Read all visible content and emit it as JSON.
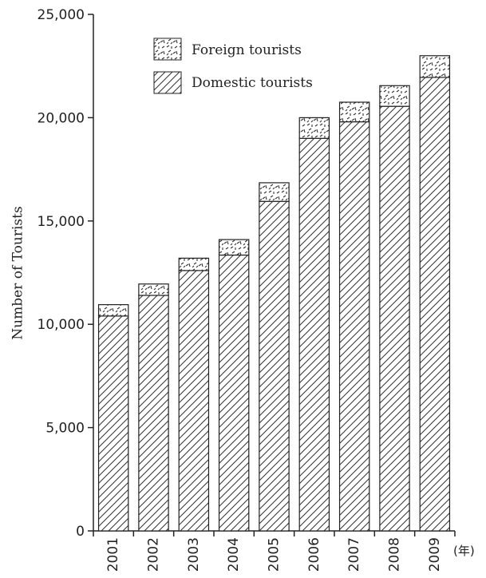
{
  "chart_data": {
    "type": "bar",
    "stacked": true,
    "categories": [
      "2001",
      "2002",
      "2003",
      "2004",
      "2005",
      "2006",
      "2007",
      "2008",
      "2009"
    ],
    "series": [
      {
        "name": "Domestic tourists",
        "pattern": "diagonal-hatch",
        "values": [
          10400,
          11400,
          12600,
          13350,
          15950,
          19000,
          19800,
          20550,
          21950
        ]
      },
      {
        "name": "Foreign tourists",
        "pattern": "dashed-speckle",
        "values": [
          550,
          550,
          600,
          750,
          900,
          1000,
          950,
          1000,
          1050
        ]
      }
    ],
    "ylabel": "Number of Tourists",
    "x_unit_label": "(年)",
    "ylim": [
      0,
      25000
    ],
    "yticks": [
      "0",
      "5,000",
      "10,000",
      "15,000",
      "20,000",
      "25,000"
    ],
    "legend": {
      "placement": "top-left",
      "items": [
        "Foreign tourists",
        "Domestic tourists"
      ]
    },
    "grid": false,
    "colors": {
      "stroke": "#222222",
      "fill": "#ffffff"
    }
  }
}
